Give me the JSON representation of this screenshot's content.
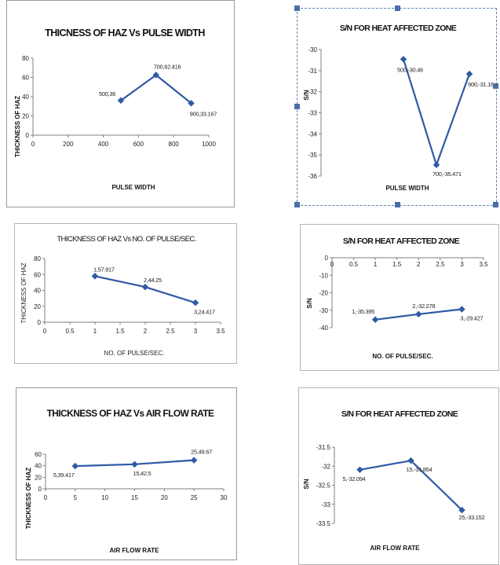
{
  "colors": {
    "line": "#2f5aa5",
    "marker": "#2f5aa5",
    "axis": "#7f7f7f"
  },
  "chart_data": [
    {
      "type": "line",
      "title": "THICNESS OF HAZ  Vs  PULSE WIDTH",
      "xlabel": "PULSE WIDTH",
      "ylabel": "THICKNESS OF HAZ",
      "xlim": [
        0,
        1000
      ],
      "ylim": [
        0,
        80
      ],
      "xticks": [
        "0",
        "200",
        "400",
        "600",
        "800",
        "1000"
      ],
      "yticks": [
        "0",
        "20",
        "40",
        "60",
        "80"
      ],
      "x": [
        500,
        700,
        900
      ],
      "y": [
        36,
        62.416,
        33.167
      ],
      "point_labels": [
        "500,36",
        "700,62.416",
        "900,33.167"
      ]
    },
    {
      "type": "line",
      "title": "S/N FOR HEAT AFFECTED ZONE",
      "xlabel": "PULSE WIDTH",
      "ylabel": "S/N",
      "xlim": [
        0,
        1000
      ],
      "ylim": [
        -36,
        -30
      ],
      "xticks": [
        "0",
        "200",
        "400",
        "600",
        "800",
        "1000"
      ],
      "yticks": [
        "-30",
        "-31",
        "-32",
        "-33",
        "-34",
        "-35",
        "-36"
      ],
      "x": [
        500,
        700,
        900
      ],
      "y": [
        -30.46,
        -35.471,
        -31.16
      ],
      "point_labels": [
        "500,-30.46",
        "700,-35.471",
        "900,-31.16"
      ]
    },
    {
      "type": "line",
      "title": "THICKNESS OF HAZ  Vs  NO. OF PULSE/SEC.",
      "xlabel": "NO. OF PULSE/SEC.",
      "ylabel": "THICKNESS OF HAZ",
      "xlim": [
        0,
        3.5
      ],
      "ylim": [
        0,
        80
      ],
      "xticks": [
        "0",
        "0.5",
        "1",
        "1.5",
        "2",
        "2.5",
        "3",
        "3.5"
      ],
      "yticks": [
        "0",
        "20",
        "40",
        "60",
        "80"
      ],
      "x": [
        1,
        2,
        3
      ],
      "y": [
        57.917,
        44.25,
        24.417
      ],
      "point_labels": [
        "1,57.917",
        "2,44.25",
        "3,24.417"
      ]
    },
    {
      "type": "line",
      "title": "S/N FOR HEAT AFFECTED ZONE",
      "xlabel": "NO. OF PULSE/SEC.",
      "ylabel": "S/N",
      "xlim": [
        0,
        3.5
      ],
      "ylim": [
        -40,
        0
      ],
      "xticks": [
        "0",
        "0.5",
        "1",
        "1.5",
        "2",
        "2.5",
        "3",
        "3.5"
      ],
      "yticks": [
        "0",
        "-10",
        "-20",
        "-30",
        "-40"
      ],
      "x": [
        1,
        2,
        3
      ],
      "y": [
        -35.395,
        -32.278,
        -29.427
      ],
      "point_labels": [
        "1,-35.395",
        "2,-32.278",
        "3,-29.427"
      ]
    },
    {
      "type": "line",
      "title": "THICKNESS OF HAZ  Vs  AIR FLOW RATE",
      "xlabel": "AIR FLOW RATE",
      "ylabel": "THICKNESS OF HAZ",
      "xlim": [
        0,
        30
      ],
      "ylim": [
        0,
        60
      ],
      "xticks": [
        "0",
        "5",
        "10",
        "15",
        "20",
        "25",
        "30"
      ],
      "yticks": [
        "0",
        "20",
        "40",
        "60"
      ],
      "x": [
        5,
        15,
        25
      ],
      "y": [
        39.417,
        42.5,
        49.67
      ],
      "point_labels": [
        "5,39.417",
        "15,42.5",
        "25,49.67"
      ]
    },
    {
      "type": "line",
      "title": "S/N FOR HEAT AFFECTED ZONE",
      "xlabel": "AIR FLOW RATE",
      "ylabel": "S/N",
      "xlim": [
        0,
        30
      ],
      "ylim": [
        -33.5,
        -31.5
      ],
      "xticks": [
        "0",
        "5",
        "10",
        "15",
        "20",
        "25",
        "30"
      ],
      "yticks": [
        "-31.5",
        "-32",
        "-32.5",
        "-33",
        "-33.5"
      ],
      "x": [
        5,
        15,
        25
      ],
      "y": [
        -32.094,
        -31.854,
        -33.152
      ],
      "point_labels": [
        "5,-32.094",
        "15,-31.854",
        "25,-33.152"
      ]
    }
  ]
}
